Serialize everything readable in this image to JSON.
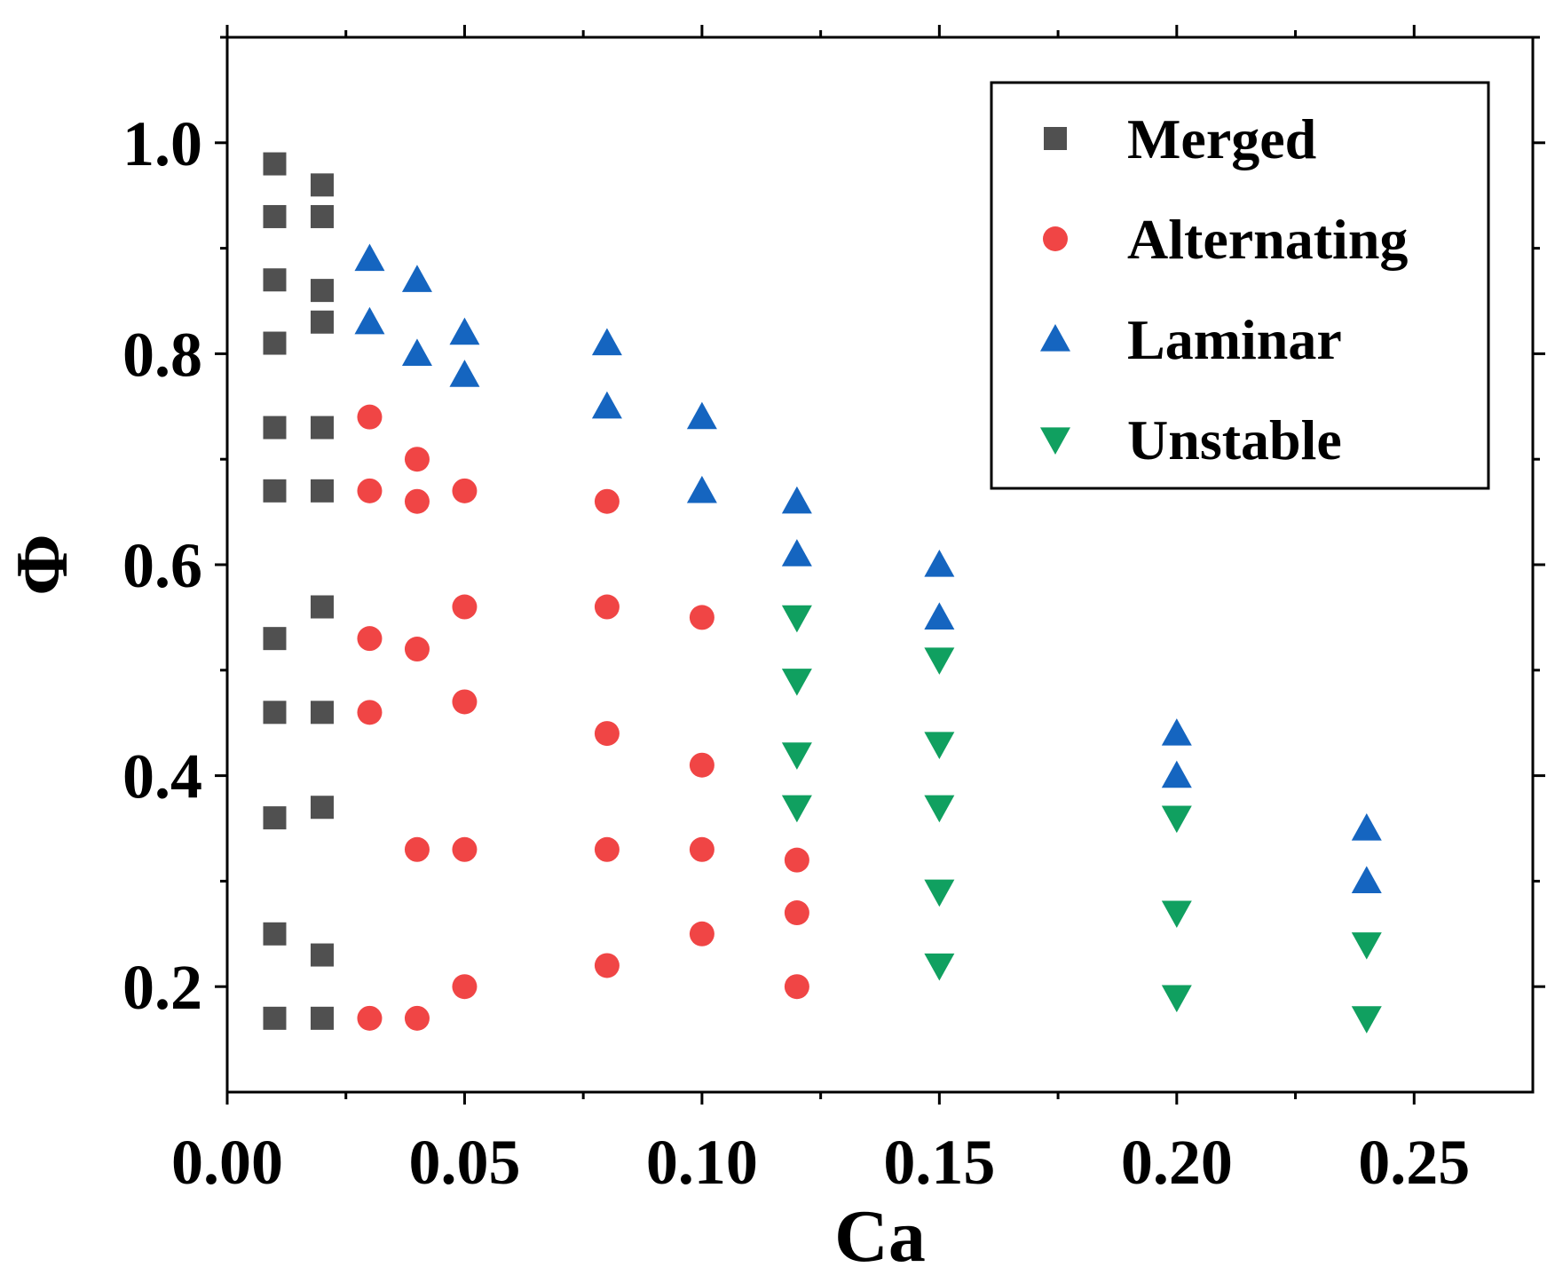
{
  "chart_data": {
    "type": "scatter",
    "title": "",
    "xlabel": "Ca",
    "ylabel": "Φ",
    "xlim": [
      0.0,
      0.275
    ],
    "ylim": [
      0.1,
      1.1
    ],
    "xticks": [
      0.0,
      0.05,
      0.1,
      0.15,
      0.2,
      0.25
    ],
    "xtick_labels": [
      "0.00",
      "0.05",
      "0.10",
      "0.15",
      "0.20",
      "0.25"
    ],
    "yticks": [
      0.2,
      0.4,
      0.6,
      0.8,
      1.0
    ],
    "ytick_labels": [
      "0.2",
      "0.4",
      "0.6",
      "0.8",
      "1.0"
    ],
    "grid": false,
    "legend_position": "top-right",
    "series": [
      {
        "name": "Merged",
        "marker": "square",
        "color": "#505050",
        "points": [
          [
            0.01,
            0.98
          ],
          [
            0.01,
            0.93
          ],
          [
            0.01,
            0.87
          ],
          [
            0.01,
            0.81
          ],
          [
            0.01,
            0.73
          ],
          [
            0.01,
            0.67
          ],
          [
            0.01,
            0.53
          ],
          [
            0.01,
            0.46
          ],
          [
            0.01,
            0.36
          ],
          [
            0.01,
            0.25
          ],
          [
            0.01,
            0.17
          ],
          [
            0.02,
            0.96
          ],
          [
            0.02,
            0.93
          ],
          [
            0.02,
            0.86
          ],
          [
            0.02,
            0.83
          ],
          [
            0.02,
            0.73
          ],
          [
            0.02,
            0.67
          ],
          [
            0.02,
            0.56
          ],
          [
            0.02,
            0.46
          ],
          [
            0.02,
            0.37
          ],
          [
            0.02,
            0.23
          ],
          [
            0.02,
            0.17
          ]
        ]
      },
      {
        "name": "Alternating",
        "marker": "circle",
        "color": "#f04545",
        "points": [
          [
            0.03,
            0.74
          ],
          [
            0.03,
            0.67
          ],
          [
            0.03,
            0.53
          ],
          [
            0.03,
            0.46
          ],
          [
            0.03,
            0.17
          ],
          [
            0.04,
            0.7
          ],
          [
            0.04,
            0.66
          ],
          [
            0.04,
            0.52
          ],
          [
            0.04,
            0.33
          ],
          [
            0.04,
            0.17
          ],
          [
            0.05,
            0.67
          ],
          [
            0.05,
            0.56
          ],
          [
            0.05,
            0.47
          ],
          [
            0.05,
            0.33
          ],
          [
            0.05,
            0.2
          ],
          [
            0.08,
            0.66
          ],
          [
            0.08,
            0.56
          ],
          [
            0.08,
            0.44
          ],
          [
            0.08,
            0.33
          ],
          [
            0.08,
            0.22
          ],
          [
            0.1,
            0.55
          ],
          [
            0.1,
            0.41
          ],
          [
            0.1,
            0.33
          ],
          [
            0.1,
            0.25
          ],
          [
            0.12,
            0.32
          ],
          [
            0.12,
            0.27
          ],
          [
            0.12,
            0.2
          ]
        ]
      },
      {
        "name": "Laminar",
        "marker": "triangle-up",
        "color": "#1565c0",
        "points": [
          [
            0.03,
            0.89
          ],
          [
            0.03,
            0.83
          ],
          [
            0.04,
            0.87
          ],
          [
            0.04,
            0.8
          ],
          [
            0.05,
            0.82
          ],
          [
            0.05,
            0.78
          ],
          [
            0.08,
            0.81
          ],
          [
            0.08,
            0.75
          ],
          [
            0.1,
            0.74
          ],
          [
            0.1,
            0.67
          ],
          [
            0.12,
            0.66
          ],
          [
            0.12,
            0.61
          ],
          [
            0.15,
            0.6
          ],
          [
            0.15,
            0.55
          ],
          [
            0.2,
            0.44
          ],
          [
            0.2,
            0.4
          ],
          [
            0.24,
            0.35
          ],
          [
            0.24,
            0.3
          ]
        ]
      },
      {
        "name": "Unstable",
        "marker": "triangle-down",
        "color": "#10a060",
        "points": [
          [
            0.12,
            0.55
          ],
          [
            0.12,
            0.49
          ],
          [
            0.12,
            0.42
          ],
          [
            0.12,
            0.37
          ],
          [
            0.15,
            0.51
          ],
          [
            0.15,
            0.43
          ],
          [
            0.15,
            0.37
          ],
          [
            0.15,
            0.29
          ],
          [
            0.15,
            0.22
          ],
          [
            0.2,
            0.36
          ],
          [
            0.2,
            0.27
          ],
          [
            0.2,
            0.19
          ],
          [
            0.24,
            0.24
          ],
          [
            0.24,
            0.17
          ]
        ]
      }
    ]
  }
}
